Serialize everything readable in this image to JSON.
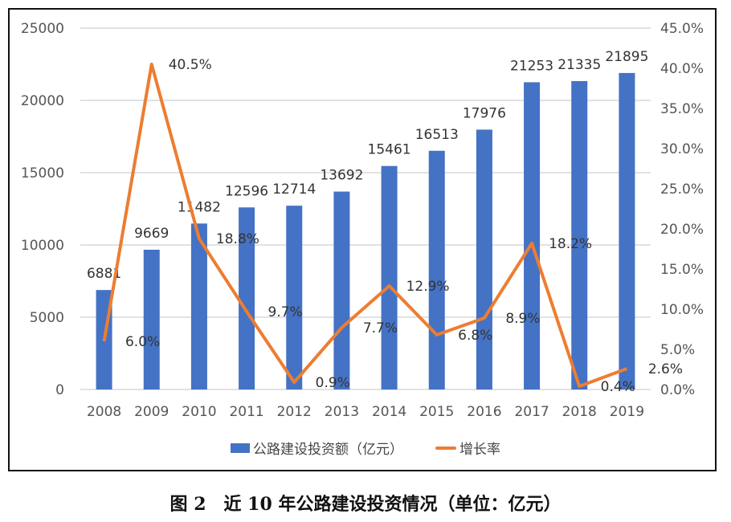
{
  "chart_data": {
    "type": "bar+line",
    "categories": [
      "2008",
      "2009",
      "2010",
      "2011",
      "2012",
      "2013",
      "2014",
      "2015",
      "2016",
      "2017",
      "2018",
      "2019"
    ],
    "series": [
      {
        "name": "公路建设投资额（亿元）",
        "type": "bar",
        "axis": "left",
        "color": "#4472C4",
        "values": [
          6881,
          9669,
          11482,
          12596,
          12714,
          13692,
          15461,
          16513,
          17976,
          21253,
          21335,
          21895
        ]
      },
      {
        "name": "增长率",
        "type": "line",
        "axis": "right",
        "color": "#ED7D31",
        "values": [
          6.0,
          40.5,
          18.8,
          9.7,
          0.9,
          7.7,
          12.9,
          6.8,
          8.9,
          18.2,
          0.4,
          2.6
        ],
        "labels": [
          "6.0%",
          "40.5%",
          "18.8%",
          "9.7%",
          "0.9%",
          "7.7%",
          "12.9%",
          "6.8%",
          "8.9%",
          "18.2%",
          "0.4%",
          "2.6%"
        ]
      }
    ],
    "y_left": {
      "range": [
        0,
        25000
      ],
      "ticks": [
        "0",
        "5000",
        "10000",
        "15000",
        "20000",
        "25000"
      ]
    },
    "y_right": {
      "range": [
        0,
        45
      ],
      "ticks": [
        "0.0%",
        "5.0%",
        "10.0%",
        "15.0%",
        "20.0%",
        "25.0%",
        "30.0%",
        "35.0%",
        "40.0%",
        "45.0%"
      ]
    },
    "grid": true,
    "legend_position": "bottom"
  },
  "legend": {
    "bar": "公路建设投资额（亿元）",
    "line": "增长率"
  },
  "caption": "图 2　近 10 年公路建设投资情况（单位：亿元）"
}
